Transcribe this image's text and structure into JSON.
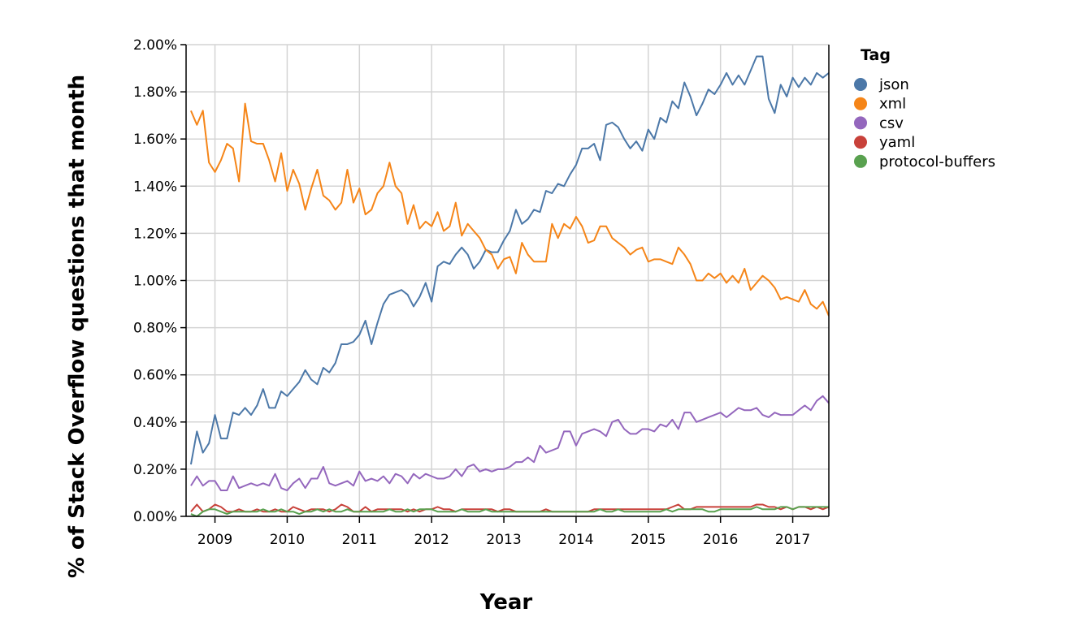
{
  "chart_data": {
    "type": "line",
    "y_label": "% of Stack Overflow questions that month",
    "x_label": "Year",
    "legend_title": "Tag",
    "legend": "right",
    "grid": true,
    "x": [
      2008.667,
      2008.75,
      2008.833,
      2008.917,
      2009,
      2009.083,
      2009.167,
      2009.25,
      2009.333,
      2009.417,
      2009.5,
      2009.583,
      2009.667,
      2009.75,
      2009.833,
      2009.917,
      2010,
      2010.083,
      2010.167,
      2010.25,
      2010.333,
      2010.417,
      2010.5,
      2010.583,
      2010.667,
      2010.75,
      2010.833,
      2010.917,
      2011,
      2011.083,
      2011.167,
      2011.25,
      2011.333,
      2011.417,
      2011.5,
      2011.583,
      2011.667,
      2011.75,
      2011.833,
      2011.917,
      2012,
      2012.083,
      2012.167,
      2012.25,
      2012.333,
      2012.417,
      2012.5,
      2012.583,
      2012.667,
      2012.75,
      2012.833,
      2012.917,
      2013,
      2013.083,
      2013.167,
      2013.25,
      2013.333,
      2013.417,
      2013.5,
      2013.583,
      2013.667,
      2013.75,
      2013.833,
      2013.917,
      2014,
      2014.083,
      2014.167,
      2014.25,
      2014.333,
      2014.417,
      2014.5,
      2014.583,
      2014.667,
      2014.75,
      2014.833,
      2014.917,
      2015,
      2015.083,
      2015.167,
      2015.25,
      2015.333,
      2015.417,
      2015.5,
      2015.583,
      2015.667,
      2015.75,
      2015.833,
      2015.917,
      2016,
      2016.083,
      2016.167,
      2016.25,
      2016.333,
      2016.417,
      2016.5,
      2016.583,
      2016.667,
      2016.75,
      2016.833,
      2016.917,
      2017,
      2017.083,
      2017.167,
      2017.25,
      2017.333,
      2017.417,
      2017.5
    ],
    "xlim": [
      2008.6,
      2017.5
    ],
    "xticks": [
      2009,
      2010,
      2011,
      2012,
      2013,
      2014,
      2015,
      2016,
      2017
    ],
    "ylim": [
      0,
      2
    ],
    "yticks": [
      {
        "value": 0,
        "label": "0.00%"
      },
      {
        "value": 0.2,
        "label": "0.20%"
      },
      {
        "value": 0.4,
        "label": "0.40%"
      },
      {
        "value": 0.6,
        "label": "0.60%"
      },
      {
        "value": 0.8,
        "label": "0.80%"
      },
      {
        "value": 1,
        "label": "1.00%"
      },
      {
        "value": 1.2,
        "label": "1.20%"
      },
      {
        "value": 1.4,
        "label": "1.40%"
      },
      {
        "value": 1.6,
        "label": "1.60%"
      },
      {
        "value": 1.8,
        "label": "1.80%"
      },
      {
        "value": 2,
        "label": "2.00%"
      }
    ],
    "series": [
      {
        "name": "json",
        "color": "#4c78a8",
        "values": [
          0.22,
          0.36,
          0.27,
          0.31,
          0.43,
          0.33,
          0.33,
          0.44,
          0.43,
          0.46,
          0.43,
          0.47,
          0.54,
          0.46,
          0.46,
          0.53,
          0.51,
          0.54,
          0.57,
          0.62,
          0.58,
          0.56,
          0.63,
          0.61,
          0.65,
          0.73,
          0.73,
          0.74,
          0.77,
          0.83,
          0.73,
          0.82,
          0.9,
          0.94,
          0.95,
          0.96,
          0.94,
          0.89,
          0.93,
          0.99,
          0.91,
          1.06,
          1.08,
          1.07,
          1.11,
          1.14,
          1.11,
          1.05,
          1.08,
          1.13,
          1.12,
          1.12,
          1.17,
          1.21,
          1.3,
          1.24,
          1.26,
          1.3,
          1.29,
          1.38,
          1.37,
          1.41,
          1.4,
          1.45,
          1.49,
          1.56,
          1.56,
          1.58,
          1.51,
          1.66,
          1.67,
          1.65,
          1.6,
          1.56,
          1.59,
          1.55,
          1.64,
          1.6,
          1.69,
          1.67,
          1.76,
          1.73,
          1.84,
          1.78,
          1.7,
          1.75,
          1.81,
          1.79,
          1.83,
          1.88,
          1.83,
          1.87,
          1.83,
          1.89,
          1.95,
          1.95,
          1.77,
          1.71,
          1.83,
          1.78,
          1.86,
          1.82,
          1.86,
          1.83,
          1.88,
          1.86,
          1.88
        ]
      },
      {
        "name": "xml",
        "color": "#f58518",
        "values": [
          1.72,
          1.66,
          1.72,
          1.5,
          1.46,
          1.51,
          1.58,
          1.56,
          1.42,
          1.75,
          1.59,
          1.58,
          1.58,
          1.51,
          1.42,
          1.54,
          1.38,
          1.47,
          1.41,
          1.3,
          1.39,
          1.47,
          1.36,
          1.34,
          1.3,
          1.33,
          1.47,
          1.33,
          1.39,
          1.28,
          1.3,
          1.37,
          1.4,
          1.5,
          1.4,
          1.37,
          1.24,
          1.32,
          1.22,
          1.25,
          1.23,
          1.29,
          1.21,
          1.23,
          1.33,
          1.19,
          1.24,
          1.21,
          1.18,
          1.13,
          1.11,
          1.05,
          1.09,
          1.1,
          1.03,
          1.16,
          1.11,
          1.08,
          1.08,
          1.08,
          1.24,
          1.18,
          1.24,
          1.22,
          1.27,
          1.23,
          1.16,
          1.17,
          1.23,
          1.23,
          1.18,
          1.16,
          1.14,
          1.11,
          1.13,
          1.14,
          1.08,
          1.09,
          1.09,
          1.08,
          1.07,
          1.14,
          1.11,
          1.07,
          1.0,
          1.0,
          1.03,
          1.01,
          1.03,
          0.99,
          1.02,
          0.99,
          1.05,
          0.96,
          0.99,
          1.02,
          1.0,
          0.97,
          0.92,
          0.93,
          0.92,
          0.91,
          0.96,
          0.9,
          0.88,
          0.91,
          0.85
        ]
      },
      {
        "name": "csv",
        "color": "#9467bd",
        "values": [
          0.13,
          0.17,
          0.13,
          0.15,
          0.15,
          0.11,
          0.11,
          0.17,
          0.12,
          0.13,
          0.14,
          0.13,
          0.14,
          0.13,
          0.18,
          0.12,
          0.11,
          0.14,
          0.16,
          0.12,
          0.16,
          0.16,
          0.21,
          0.14,
          0.13,
          0.14,
          0.15,
          0.13,
          0.19,
          0.15,
          0.16,
          0.15,
          0.17,
          0.14,
          0.18,
          0.17,
          0.14,
          0.18,
          0.16,
          0.18,
          0.17,
          0.16,
          0.16,
          0.17,
          0.2,
          0.17,
          0.21,
          0.22,
          0.19,
          0.2,
          0.19,
          0.2,
          0.2,
          0.21,
          0.23,
          0.23,
          0.25,
          0.23,
          0.3,
          0.27,
          0.28,
          0.29,
          0.36,
          0.36,
          0.3,
          0.35,
          0.36,
          0.37,
          0.36,
          0.34,
          0.4,
          0.41,
          0.37,
          0.35,
          0.35,
          0.37,
          0.37,
          0.36,
          0.39,
          0.38,
          0.41,
          0.37,
          0.44,
          0.44,
          0.4,
          0.41,
          0.42,
          0.43,
          0.44,
          0.42,
          0.44,
          0.46,
          0.45,
          0.45,
          0.46,
          0.43,
          0.42,
          0.44,
          0.43,
          0.43,
          0.43,
          0.45,
          0.47,
          0.45,
          0.49,
          0.51,
          0.48
        ]
      },
      {
        "name": "yaml",
        "color": "#c8413a",
        "values": [
          0.02,
          0.05,
          0.02,
          0.03,
          0.05,
          0.04,
          0.02,
          0.02,
          0.03,
          0.02,
          0.02,
          0.03,
          0.02,
          0.02,
          0.03,
          0.02,
          0.02,
          0.04,
          0.03,
          0.02,
          0.03,
          0.03,
          0.03,
          0.02,
          0.03,
          0.05,
          0.04,
          0.02,
          0.02,
          0.04,
          0.02,
          0.03,
          0.03,
          0.03,
          0.03,
          0.03,
          0.02,
          0.03,
          0.02,
          0.03,
          0.03,
          0.04,
          0.03,
          0.03,
          0.02,
          0.03,
          0.03,
          0.03,
          0.03,
          0.03,
          0.03,
          0.02,
          0.03,
          0.03,
          0.02,
          0.02,
          0.02,
          0.02,
          0.02,
          0.03,
          0.02,
          0.02,
          0.02,
          0.02,
          0.02,
          0.02,
          0.02,
          0.03,
          0.03,
          0.03,
          0.03,
          0.03,
          0.03,
          0.03,
          0.03,
          0.03,
          0.03,
          0.03,
          0.03,
          0.03,
          0.04,
          0.05,
          0.03,
          0.03,
          0.04,
          0.04,
          0.04,
          0.04,
          0.04,
          0.04,
          0.04,
          0.04,
          0.04,
          0.04,
          0.05,
          0.05,
          0.04,
          0.04,
          0.03,
          0.04,
          0.03,
          0.04,
          0.04,
          0.03,
          0.04,
          0.03,
          0.04
        ]
      },
      {
        "name": "protocol-buffers",
        "color": "#59a14f",
        "values": [
          0.01,
          0.0,
          0.02,
          0.03,
          0.03,
          0.02,
          0.01,
          0.02,
          0.02,
          0.02,
          0.02,
          0.02,
          0.03,
          0.02,
          0.02,
          0.03,
          0.02,
          0.02,
          0.01,
          0.02,
          0.02,
          0.03,
          0.02,
          0.03,
          0.02,
          0.02,
          0.03,
          0.02,
          0.02,
          0.02,
          0.02,
          0.02,
          0.02,
          0.03,
          0.02,
          0.02,
          0.03,
          0.02,
          0.03,
          0.03,
          0.03,
          0.02,
          0.02,
          0.02,
          0.02,
          0.03,
          0.02,
          0.02,
          0.02,
          0.03,
          0.02,
          0.02,
          0.02,
          0.02,
          0.02,
          0.02,
          0.02,
          0.02,
          0.02,
          0.02,
          0.02,
          0.02,
          0.02,
          0.02,
          0.02,
          0.02,
          0.02,
          0.02,
          0.03,
          0.02,
          0.02,
          0.03,
          0.02,
          0.02,
          0.02,
          0.02,
          0.02,
          0.02,
          0.02,
          0.03,
          0.02,
          0.03,
          0.03,
          0.03,
          0.03,
          0.03,
          0.02,
          0.02,
          0.03,
          0.03,
          0.03,
          0.03,
          0.03,
          0.03,
          0.04,
          0.03,
          0.03,
          0.03,
          0.04,
          0.04,
          0.03,
          0.04,
          0.04,
          0.04,
          0.04,
          0.04,
          0.04
        ]
      }
    ]
  }
}
